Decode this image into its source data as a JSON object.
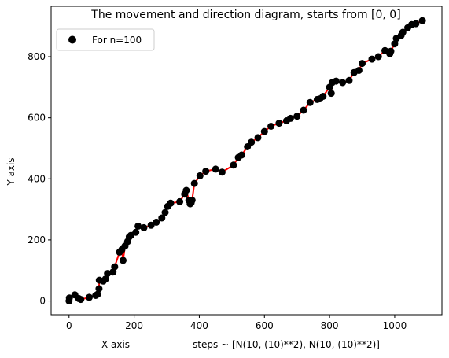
{
  "chart_data": {
    "type": "scatter",
    "title": "The movement and direction diagram, starts from [0, 0]",
    "xlabel": "X axis",
    "xlabel_note": "steps ~ [N(10, (10)**2), N(10, (10)**2)]",
    "ylabel": "Y axis",
    "xlim": [
      -55,
      1145
    ],
    "ylim": [
      -45,
      965
    ],
    "xticks": [
      0,
      200,
      400,
      600,
      800,
      1000
    ],
    "yticks": [
      0,
      200,
      400,
      600,
      800
    ],
    "grid": false,
    "legend": {
      "position": "top-left",
      "label": "For n=100"
    },
    "colors": {
      "points": "#000000",
      "path": "#ff0000",
      "axes": "#000000",
      "legend_border": "#cccccc"
    },
    "series": [
      {
        "name": "For n=100",
        "x": [
          0,
          1,
          18,
          30,
          36,
          62,
          82,
          88,
          92,
          93,
          105,
          112,
          118,
          135,
          140,
          155,
          162,
          166,
          172,
          180,
          185,
          190,
          205,
          212,
          230,
          252,
          268,
          285,
          295,
          303,
          312,
          340,
          355,
          360,
          368,
          372,
          375,
          378,
          385,
          402,
          420,
          450,
          470,
          505,
          520,
          530,
          548,
          560,
          580,
          600,
          620,
          645,
          668,
          680,
          700,
          720,
          740,
          762,
          770,
          780,
          800,
          805,
          808,
          820,
          840,
          860,
          875,
          890,
          900,
          930,
          950,
          970,
          985,
          988,
          1000,
          1005,
          1020,
          1025,
          1040,
          1052,
          1065,
          1085
        ],
        "y": [
          0,
          10,
          20,
          8,
          5,
          12,
          18,
          22,
          40,
          68,
          65,
          72,
          90,
          95,
          112,
          160,
          168,
          133,
          180,
          195,
          210,
          215,
          225,
          245,
          240,
          248,
          258,
          272,
          290,
          310,
          320,
          325,
          350,
          362,
          330,
          318,
          322,
          330,
          385,
          410,
          425,
          432,
          422,
          445,
          470,
          478,
          505,
          520,
          535,
          555,
          572,
          582,
          590,
          598,
          605,
          625,
          650,
          660,
          662,
          670,
          700,
          680,
          715,
          720,
          715,
          722,
          748,
          755,
          778,
          792,
          800,
          820,
          810,
          818,
          842,
          860,
          870,
          880,
          895,
          905,
          908,
          918
        ]
      }
    ]
  }
}
